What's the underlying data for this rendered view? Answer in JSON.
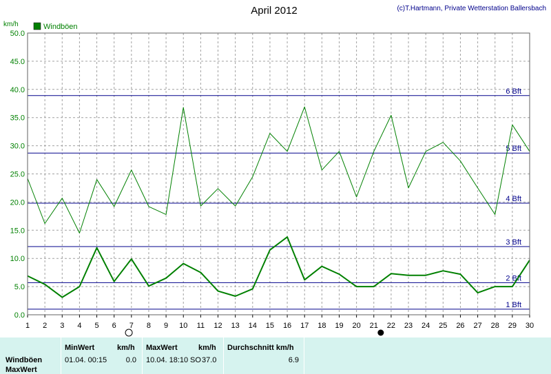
{
  "chart_data": {
    "type": "line",
    "title": "April 2012",
    "credit": "(c)T.Hartmann, Private Wetterstation Ballersbach",
    "ylabel": "km/h",
    "ylim": [
      0,
      50
    ],
    "yticks": [
      "0.0",
      "5.0",
      "10.0",
      "15.0",
      "20.0",
      "25.0",
      "30.0",
      "35.0",
      "40.0",
      "45.0",
      "50.0"
    ],
    "x": [
      1,
      2,
      3,
      4,
      5,
      6,
      7,
      8,
      9,
      10,
      11,
      12,
      13,
      14,
      15,
      16,
      17,
      18,
      19,
      20,
      21,
      22,
      23,
      24,
      25,
      26,
      27,
      28,
      29,
      30
    ],
    "xlim": [
      1,
      30
    ],
    "grid": true,
    "legend_position": "top-left",
    "colors": {
      "series": "#008000",
      "beaufort": "#00008b",
      "grid": "#a0a0a0",
      "legend": "#008000"
    },
    "series": [
      {
        "name": "Windböen",
        "kind": "daily-max",
        "values": [
          24.2,
          16.2,
          20.7,
          14.5,
          24.0,
          19.2,
          25.7,
          19.2,
          17.8,
          36.8,
          19.3,
          22.4,
          19.3,
          24.5,
          32.2,
          29.0,
          36.9,
          25.7,
          29.0,
          20.9,
          29.0,
          35.4,
          22.5,
          29.0,
          30.6,
          27.3,
          22.5,
          17.8,
          33.7,
          29.0
        ]
      },
      {
        "name": "",
        "kind": "daily-mean",
        "values": [
          6.9,
          5.4,
          3.1,
          5.0,
          11.9,
          5.9,
          9.9,
          5.1,
          6.5,
          9.1,
          7.5,
          4.2,
          3.3,
          4.6,
          11.5,
          13.8,
          6.2,
          8.6,
          7.2,
          5.0,
          5.0,
          7.3,
          7.0,
          7.0,
          7.8,
          7.2,
          3.9,
          5.0,
          5.0,
          9.7
        ]
      }
    ],
    "reference_lines": [
      {
        "label": "1 Bft",
        "value": 1.0
      },
      {
        "label": "2 Bft",
        "value": 5.7
      },
      {
        "label": "3 Bft",
        "value": 12.1
      },
      {
        "label": "4 Bft",
        "value": 19.8
      },
      {
        "label": "5 Bft",
        "value": 28.7
      },
      {
        "label": "6 Bft",
        "value": 38.9
      }
    ],
    "moon_phases": [
      {
        "day": 6.85,
        "phase": "full"
      },
      {
        "day": 21.4,
        "phase": "new"
      }
    ]
  },
  "footer": {
    "row_label_1": "Windböen",
    "row_label_2": "MaxWert",
    "min_header": "MinWert",
    "min_unit": "km/h",
    "min_datetime": "01.04.  00:15",
    "min_value": "0.0",
    "max_header": "MaxWert",
    "max_unit": "km/h",
    "max_datetime": "10.04.  18:10",
    "max_direction": "SO",
    "max_value": "37.0",
    "avg_header": "Durchschnitt km/h",
    "avg_value": "6.9"
  }
}
